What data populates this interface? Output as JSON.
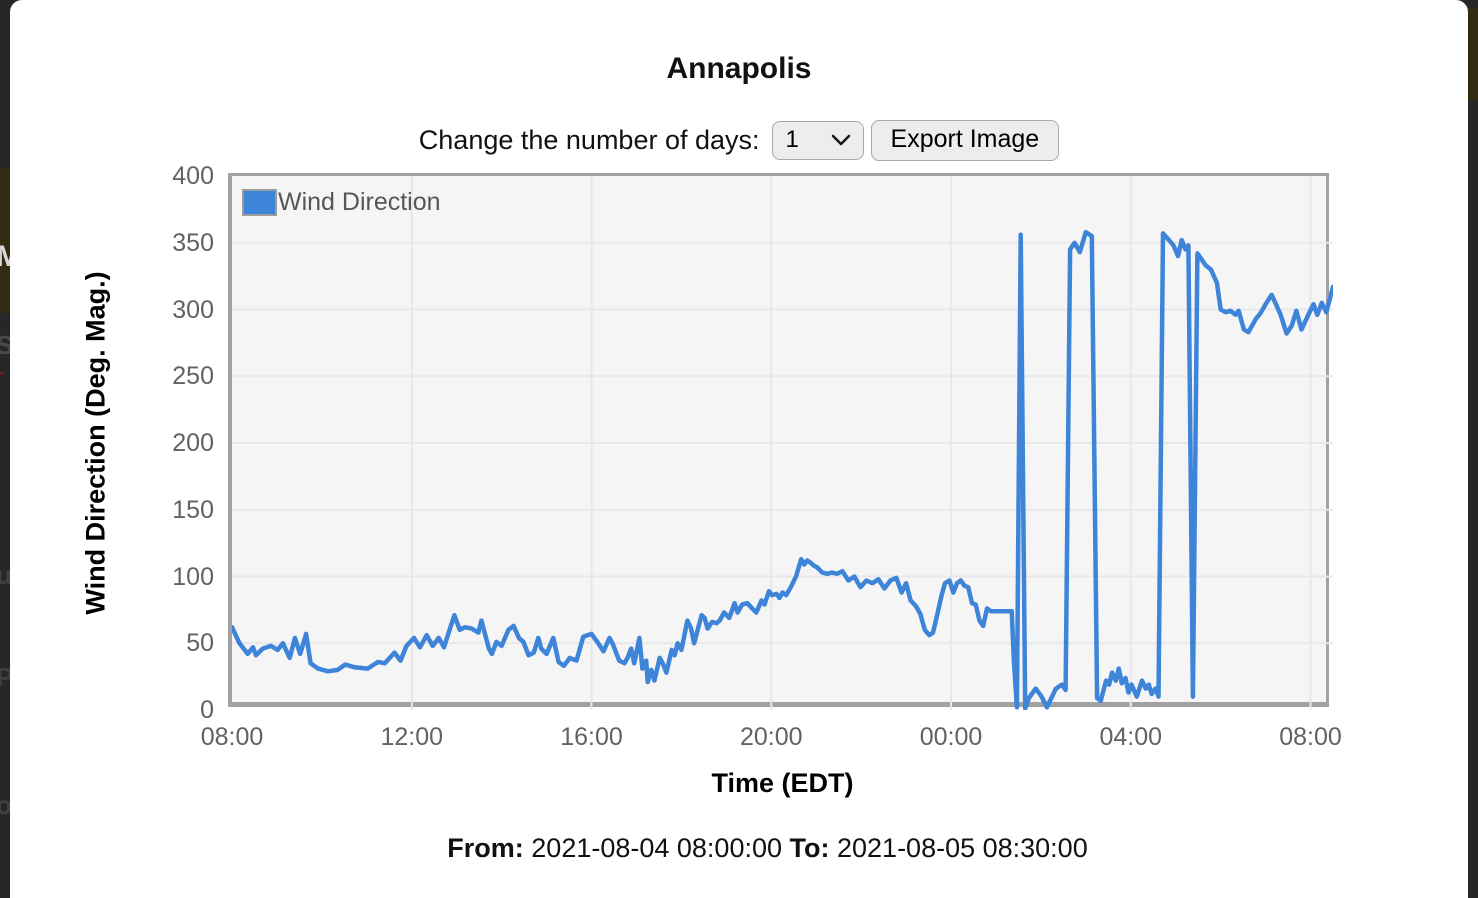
{
  "backdrop": {
    "left_fragments": [
      "M",
      "S",
      "",
      "u",
      "P",
      "o"
    ]
  },
  "modal": {
    "title": "Annapolis",
    "controls": {
      "label": "Change the number of days:",
      "days_selected": "1",
      "days_options_visible": [
        "1"
      ],
      "export_button": "Export Image"
    },
    "footer": {
      "from_label": "From:",
      "from_value": "2021-08-04 08:00:00",
      "to_label": "To:",
      "to_value": "2021-08-05 08:30:00"
    }
  },
  "colors": {
    "line": "#3e84d8",
    "grid": "#e8e8ea",
    "plot_bg": "#f5f5f6",
    "plot_border": "#a2a2a2",
    "tick_text": "#626262",
    "backdrop": "#272727"
  },
  "chart_data": {
    "type": "line",
    "title": "Annapolis",
    "xlabel": "Time (EDT)",
    "ylabel": "Wind Direction (Deg. Mag.)",
    "legend_position": "top-left-inside",
    "grid": true,
    "x_unit": "minutes since 2021-08-04 08:00 EDT",
    "x_range": [
      0,
      1470
    ],
    "y_range": [
      0,
      400
    ],
    "y_ticks": [
      0,
      50,
      100,
      150,
      200,
      250,
      300,
      350,
      400
    ],
    "x_ticks": [
      {
        "pos": 0,
        "label": "08:00"
      },
      {
        "pos": 240,
        "label": "12:00"
      },
      {
        "pos": 480,
        "label": "16:00"
      },
      {
        "pos": 720,
        "label": "20:00"
      },
      {
        "pos": 960,
        "label": "00:00"
      },
      {
        "pos": 1200,
        "label": "04:00"
      },
      {
        "pos": 1440,
        "label": "08:00"
      }
    ],
    "legend": [
      {
        "label": "Wind Direction",
        "color": "#3e84d8"
      }
    ],
    "series": [
      {
        "name": "Wind Direction",
        "color": "#3e84d8",
        "points": [
          [
            0,
            62
          ],
          [
            10,
            50
          ],
          [
            21,
            42
          ],
          [
            28,
            47
          ],
          [
            32,
            41
          ],
          [
            41,
            46
          ],
          [
            52,
            48
          ],
          [
            61,
            45
          ],
          [
            68,
            50
          ],
          [
            77,
            39
          ],
          [
            84,
            54
          ],
          [
            91,
            42
          ],
          [
            99,
            57
          ],
          [
            105,
            35
          ],
          [
            115,
            31
          ],
          [
            128,
            29
          ],
          [
            141,
            30
          ],
          [
            151,
            34
          ],
          [
            164,
            32
          ],
          [
            181,
            31
          ],
          [
            195,
            36
          ],
          [
            204,
            35
          ],
          [
            217,
            43
          ],
          [
            225,
            37
          ],
          [
            233,
            48
          ],
          [
            243,
            54
          ],
          [
            251,
            47
          ],
          [
            260,
            56
          ],
          [
            268,
            48
          ],
          [
            276,
            54
          ],
          [
            283,
            47
          ],
          [
            291,
            61
          ],
          [
            297,
            71
          ],
          [
            304,
            60
          ],
          [
            311,
            62
          ],
          [
            320,
            61
          ],
          [
            329,
            58
          ],
          [
            333,
            67
          ],
          [
            343,
            46
          ],
          [
            347,
            42
          ],
          [
            353,
            51
          ],
          [
            360,
            48
          ],
          [
            369,
            60
          ],
          [
            376,
            63
          ],
          [
            383,
            54
          ],
          [
            389,
            51
          ],
          [
            396,
            41
          ],
          [
            403,
            43
          ],
          [
            409,
            54
          ],
          [
            413,
            46
          ],
          [
            420,
            42
          ],
          [
            429,
            54
          ],
          [
            436,
            36
          ],
          [
            443,
            33
          ],
          [
            451,
            39
          ],
          [
            460,
            37
          ],
          [
            469,
            55
          ],
          [
            480,
            57
          ],
          [
            489,
            50
          ],
          [
            496,
            44
          ],
          [
            504,
            54
          ],
          [
            508,
            50
          ],
          [
            517,
            37
          ],
          [
            524,
            35
          ],
          [
            528,
            39
          ],
          [
            533,
            46
          ],
          [
            537,
            35
          ],
          [
            544,
            54
          ],
          [
            548,
            31
          ],
          [
            553,
            37
          ],
          [
            555,
            21
          ],
          [
            560,
            30
          ],
          [
            564,
            22
          ],
          [
            571,
            39
          ],
          [
            575,
            35
          ],
          [
            580,
            28
          ],
          [
            587,
            45
          ],
          [
            591,
            41
          ],
          [
            595,
            50
          ],
          [
            600,
            45
          ],
          [
            608,
            67
          ],
          [
            613,
            61
          ],
          [
            617,
            50
          ],
          [
            627,
            71
          ],
          [
            631,
            69
          ],
          [
            635,
            61
          ],
          [
            641,
            66
          ],
          [
            647,
            65
          ],
          [
            651,
            67
          ],
          [
            657,
            73
          ],
          [
            664,
            69
          ],
          [
            671,
            80
          ],
          [
            675,
            73
          ],
          [
            681,
            79
          ],
          [
            688,
            80
          ],
          [
            693,
            77
          ],
          [
            700,
            73
          ],
          [
            707,
            82
          ],
          [
            711,
            79
          ],
          [
            717,
            89
          ],
          [
            721,
            86
          ],
          [
            727,
            87
          ],
          [
            731,
            84
          ],
          [
            735,
            88
          ],
          [
            740,
            86
          ],
          [
            747,
            93
          ],
          [
            753,
            100
          ],
          [
            760,
            113
          ],
          [
            764,
            109
          ],
          [
            768,
            112
          ],
          [
            773,
            110
          ],
          [
            777,
            108
          ],
          [
            781,
            107
          ],
          [
            788,
            103
          ],
          [
            795,
            102
          ],
          [
            801,
            103
          ],
          [
            808,
            102
          ],
          [
            815,
            104
          ],
          [
            823,
            97
          ],
          [
            831,
            100
          ],
          [
            839,
            92
          ],
          [
            847,
            97
          ],
          [
            855,
            95
          ],
          [
            863,
            98
          ],
          [
            871,
            91
          ],
          [
            879,
            97
          ],
          [
            887,
            99
          ],
          [
            894,
            88
          ],
          [
            900,
            95
          ],
          [
            906,
            82
          ],
          [
            913,
            78
          ],
          [
            919,
            72
          ],
          [
            925,
            60
          ],
          [
            931,
            56
          ],
          [
            936,
            58
          ],
          [
            941,
            70
          ],
          [
            947,
            85
          ],
          [
            952,
            95
          ],
          [
            958,
            97
          ],
          [
            963,
            88
          ],
          [
            968,
            95
          ],
          [
            973,
            97
          ],
          [
            978,
            93
          ],
          [
            983,
            92
          ],
          [
            988,
            80
          ],
          [
            993,
            79
          ],
          [
            998,
            67
          ],
          [
            1003,
            63
          ],
          [
            1008,
            76
          ],
          [
            1013,
            74
          ],
          [
            1041,
            74
          ],
          [
            1044,
            37
          ],
          [
            1048,
            2
          ],
          [
            1053,
            356
          ],
          [
            1059,
            1
          ],
          [
            1064,
            9
          ],
          [
            1073,
            16
          ],
          [
            1081,
            10
          ],
          [
            1088,
            2
          ],
          [
            1100,
            16
          ],
          [
            1108,
            19
          ],
          [
            1113,
            15
          ],
          [
            1119,
            345
          ],
          [
            1125,
            350
          ],
          [
            1132,
            343
          ],
          [
            1140,
            358
          ],
          [
            1148,
            355
          ],
          [
            1155,
            9
          ],
          [
            1160,
            7
          ],
          [
            1167,
            22
          ],
          [
            1171,
            19
          ],
          [
            1175,
            28
          ],
          [
            1180,
            22
          ],
          [
            1184,
            31
          ],
          [
            1188,
            20
          ],
          [
            1193,
            24
          ],
          [
            1197,
            13
          ],
          [
            1201,
            19
          ],
          [
            1208,
            10
          ],
          [
            1215,
            22
          ],
          [
            1220,
            16
          ],
          [
            1224,
            19
          ],
          [
            1228,
            12
          ],
          [
            1233,
            16
          ],
          [
            1237,
            10
          ],
          [
            1243,
            357
          ],
          [
            1251,
            352
          ],
          [
            1257,
            348
          ],
          [
            1263,
            340
          ],
          [
            1268,
            352
          ],
          [
            1273,
            345
          ],
          [
            1277,
            348
          ],
          [
            1283,
            10
          ],
          [
            1289,
            342
          ],
          [
            1300,
            333
          ],
          [
            1307,
            330
          ],
          [
            1315,
            320
          ],
          [
            1320,
            300
          ],
          [
            1327,
            298
          ],
          [
            1333,
            299
          ],
          [
            1340,
            296
          ],
          [
            1344,
            299
          ],
          [
            1351,
            285
          ],
          [
            1357,
            283
          ],
          [
            1367,
            293
          ],
          [
            1373,
            297
          ],
          [
            1380,
            304
          ],
          [
            1388,
            311
          ],
          [
            1393,
            305
          ],
          [
            1400,
            296
          ],
          [
            1408,
            282
          ],
          [
            1415,
            288
          ],
          [
            1421,
            299
          ],
          [
            1428,
            285
          ],
          [
            1437,
            296
          ],
          [
            1444,
            304
          ],
          [
            1449,
            296
          ],
          [
            1455,
            305
          ],
          [
            1461,
            298
          ],
          [
            1470,
            317
          ]
        ]
      }
    ]
  }
}
